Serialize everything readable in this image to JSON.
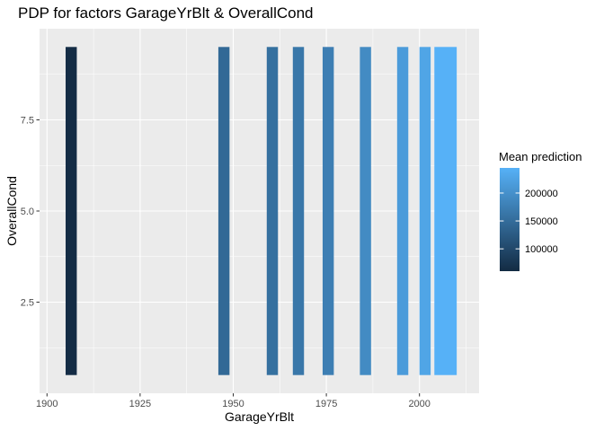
{
  "chart_data": {
    "type": "heatmap",
    "title": "PDP for factors GarageYrBlt & OverallCond",
    "xlabel": "GarageYrBlt",
    "ylabel": "OverallCond",
    "xlim": [
      1898,
      2016
    ],
    "ylim": [
      0,
      10
    ],
    "x_ticks": [
      1900,
      1925,
      1950,
      1975,
      2000
    ],
    "y_ticks": [
      2.5,
      5.0,
      7.5
    ],
    "y_tick_labels": [
      "2.5",
      "5.0",
      "7.5"
    ],
    "y_range": [
      0.5,
      9.5
    ],
    "grid": true,
    "legend": {
      "title": "Mean prediction",
      "placement": "right",
      "range": [
        60000,
        245000
      ],
      "ticks": [
        100000,
        150000,
        200000
      ],
      "tick_labels": [
        "100000",
        "150000",
        "200000"
      ],
      "color_low": "#132B43",
      "color_high": "#56B1F7"
    },
    "tiles": [
      {
        "x0": 1905,
        "x1": 1908,
        "value": 62000
      },
      {
        "x0": 1946,
        "x1": 1949,
        "value": 145000
      },
      {
        "x0": 1959,
        "x1": 1962,
        "value": 155000
      },
      {
        "x0": 1966,
        "x1": 1969,
        "value": 165000
      },
      {
        "x0": 1974,
        "x1": 1977,
        "value": 175000
      },
      {
        "x0": 1984,
        "x1": 1987,
        "value": 192000
      },
      {
        "x0": 1994,
        "x1": 1997,
        "value": 215000
      },
      {
        "x0": 2000,
        "x1": 2003,
        "value": 228000
      },
      {
        "x0": 2004,
        "x1": 2010,
        "value": 245000
      }
    ]
  }
}
